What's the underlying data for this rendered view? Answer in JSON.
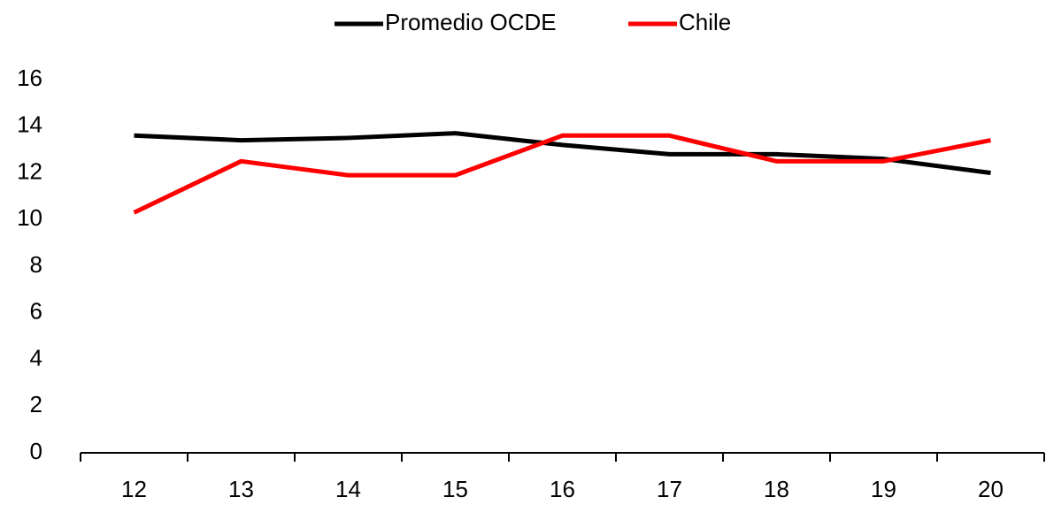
{
  "chart_data": {
    "type": "line",
    "categories": [
      "12",
      "13",
      "14",
      "15",
      "16",
      "17",
      "18",
      "19",
      "20"
    ],
    "series": [
      {
        "name": "Promedio OCDE",
        "color": "#000000",
        "values": [
          13.6,
          13.4,
          13.5,
          13.7,
          13.2,
          12.8,
          12.8,
          12.6,
          12.0
        ]
      },
      {
        "name": "Chile",
        "color": "#ff0000",
        "values": [
          10.3,
          12.5,
          11.9,
          11.9,
          13.6,
          13.6,
          12.5,
          12.5,
          13.4
        ]
      }
    ],
    "ylim": [
      0,
      16
    ],
    "yticks": [
      0,
      2,
      4,
      6,
      8,
      10,
      12,
      14,
      16
    ],
    "grid": false,
    "legend": "top"
  }
}
